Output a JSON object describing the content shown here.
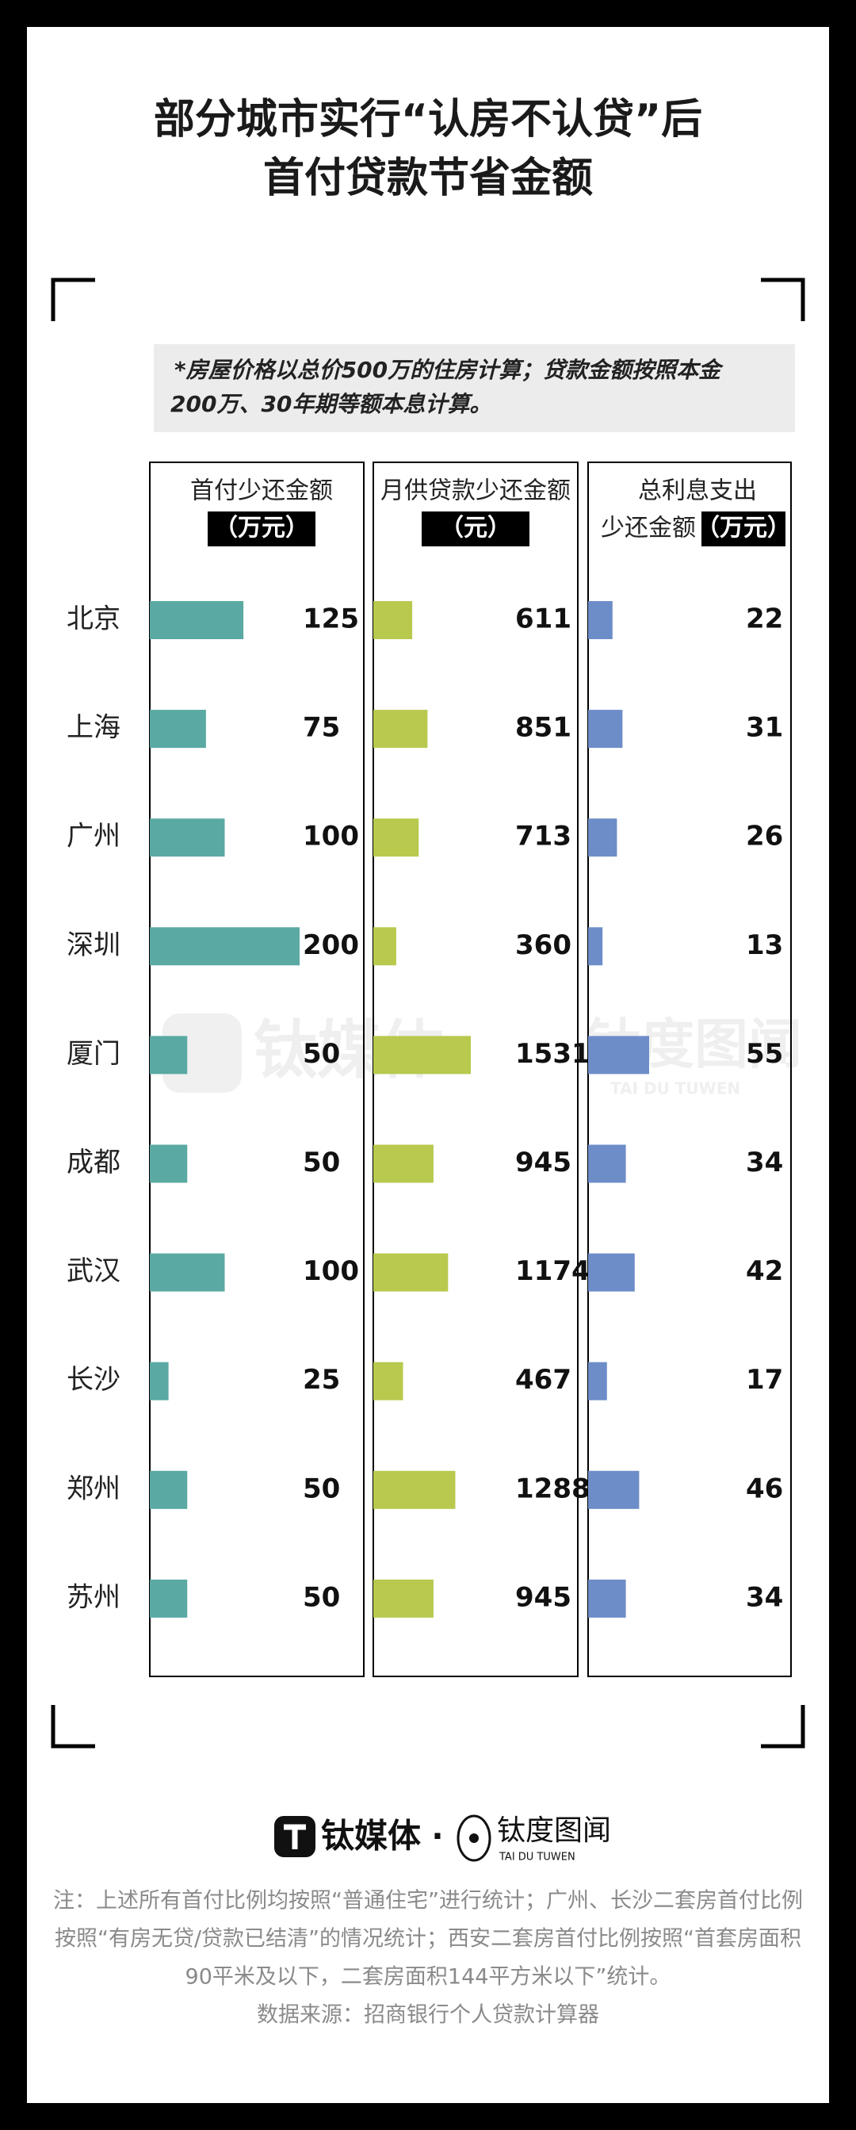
{
  "title": [
    "部分城市实行“认房不认贷”后",
    "首付贷款节省金额"
  ],
  "note": [
    "*房屋价格以总价500万的住房计算；贷款金额按照本金",
    "200万、30年期等额本息计算。"
  ],
  "chart_data": [
    {
      "type": "bar",
      "title": "首付少还金额",
      "unit": "（万元）",
      "color": "#5aa9a3",
      "categories": [
        "北京",
        "上海",
        "广州",
        "深圳",
        "厦门",
        "成都",
        "武汉",
        "长沙",
        "郑州",
        "苏州"
      ],
      "values": [
        125,
        75,
        100,
        200,
        50,
        50,
        100,
        25,
        50,
        50
      ]
    },
    {
      "type": "bar",
      "title": "月供贷款少还金额",
      "unit": "（元）",
      "color": "#b8c94e",
      "values": [
        611,
        851,
        713,
        360,
        1531,
        945,
        1174,
        467,
        1288,
        945
      ]
    },
    {
      "type": "bar",
      "title": "总利息支出",
      "subtitle": "少还金额",
      "unit": "（万元）",
      "color": "#6d8dc8",
      "values": [
        22,
        31,
        26,
        13,
        55,
        34,
        42,
        17,
        46,
        34
      ]
    }
  ],
  "brand": {
    "left": "钛媒体",
    "dot": "·",
    "right": "钛度图闻",
    "right_sub": "TAI DU TUWEN"
  },
  "footnote": [
    "注：上述所有首付比例均按照“普通住宅”进行统计；广州、长沙二套房首付比例",
    "按照“有房无贷/贷款已结清”的情况统计；西安二套房首付比例按照“首套房面积",
    "90平米及以下，二套房面积144平方米以下”统计。",
    "数据来源：招商银行个人贷款计算器"
  ]
}
